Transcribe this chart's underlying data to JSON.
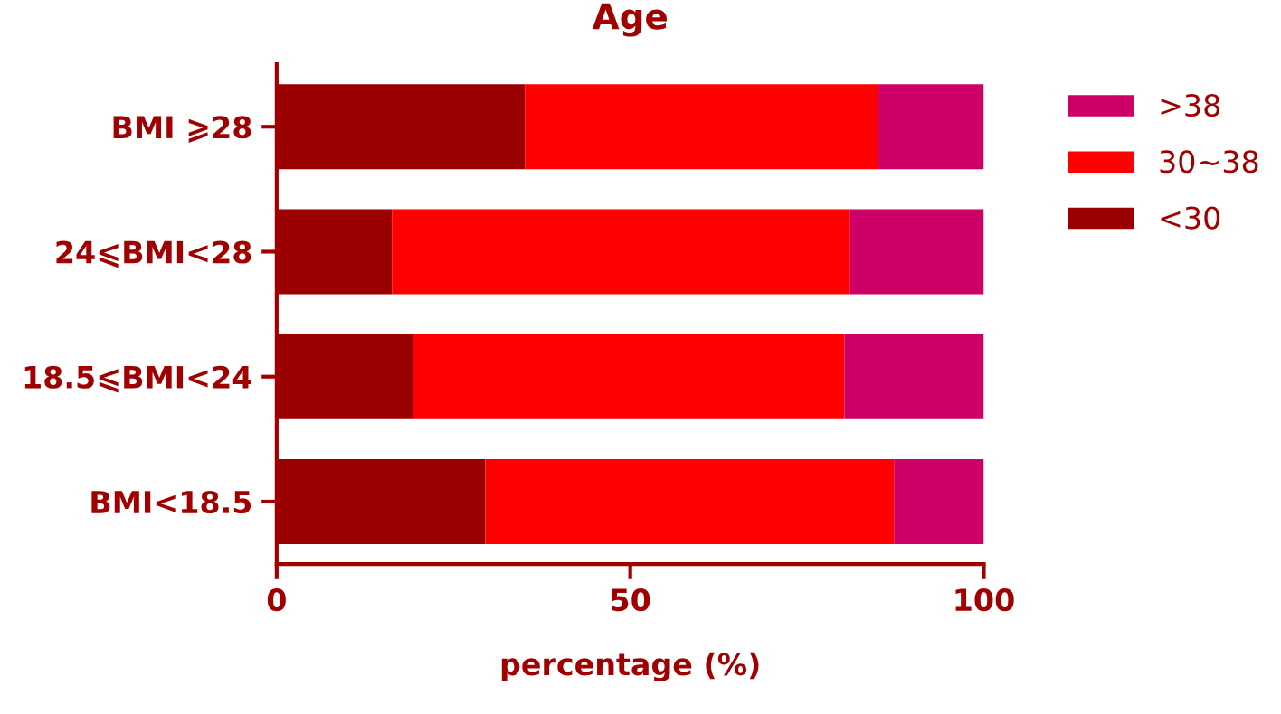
{
  "chart_data": {
    "type": "bar",
    "orientation": "horizontal",
    "stacked": true,
    "title": "Age",
    "xlabel": "percentage (%)",
    "categories": [
      "BMI ⩾28",
      "24⩽BMI<28",
      "18.5⩽BMI<24",
      "BMI<18.5"
    ],
    "series": [
      {
        "name": "<30",
        "color": "#9b0000",
        "values": [
          35.1,
          16.3,
          19.3,
          29.5
        ]
      },
      {
        "name": "30~38",
        "color": "#ff0000",
        "values": [
          50.0,
          64.8,
          61.0,
          57.8
        ]
      },
      {
        "name": ">38",
        "color": "#cc0066",
        "values": [
          14.9,
          18.9,
          19.7,
          12.7
        ]
      }
    ],
    "xlim": [
      0,
      100
    ],
    "xticks": [
      0,
      50,
      100
    ],
    "grid": false,
    "legend": "right"
  }
}
